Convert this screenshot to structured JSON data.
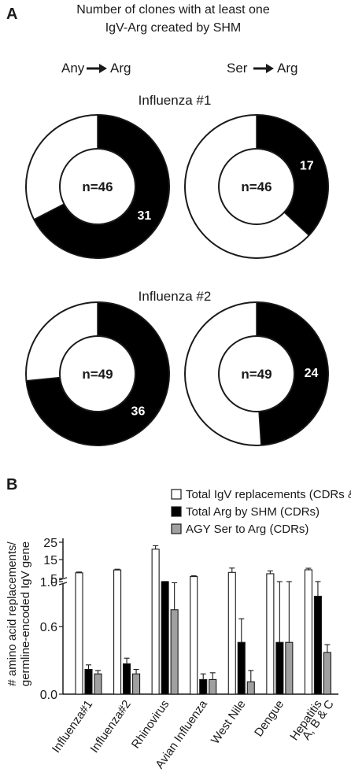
{
  "panel_a": {
    "letter": "A",
    "title_line1": "Number of clones with at least one",
    "title_line2": "IgV-Arg created by SHM",
    "col_left": "Any",
    "col_right": "Ser",
    "col_target": "Arg"
  },
  "panel_b": {
    "letter": "B"
  },
  "chart_data": [
    {
      "type": "pie",
      "style": "donut",
      "title": "Influenza #1",
      "column": "Any → Arg",
      "center_label": "n=46",
      "total": 46,
      "value": 31,
      "value_label": "31",
      "colors": {
        "value": "#000000",
        "rest": "#ffffff"
      }
    },
    {
      "type": "pie",
      "style": "donut",
      "title": "Influenza #1",
      "column": "Ser → Arg",
      "center_label": "n=46",
      "total": 46,
      "value": 17,
      "value_label": "17",
      "colors": {
        "value": "#000000",
        "rest": "#ffffff"
      }
    },
    {
      "type": "pie",
      "style": "donut",
      "title": "Influenza #2",
      "column": "Any → Arg",
      "center_label": "n=49",
      "total": 49,
      "value": 36,
      "value_label": "36",
      "colors": {
        "value": "#000000",
        "rest": "#ffffff"
      }
    },
    {
      "type": "pie",
      "style": "donut",
      "title": "Influenza #2",
      "column": "Ser → Arg",
      "center_label": "n=49",
      "total": 49,
      "value": 24,
      "value_label": "24",
      "colors": {
        "value": "#000000",
        "rest": "#ffffff"
      }
    },
    {
      "type": "bar",
      "ylabel_line1": "# amino acid replacements/",
      "ylabel_line2": "germline-encoded IgV gene",
      "y_axis": "broken",
      "y_lower": {
        "ticks": [
          "0.0",
          "0.6",
          "1.0"
        ],
        "range": [
          0,
          1.0
        ]
      },
      "y_upper": {
        "ticks": [
          "5",
          "15",
          "25"
        ],
        "range": [
          1.0,
          25
        ]
      },
      "categories": [
        "Influenza#1",
        "Influenza#2",
        "Rhinovirus",
        "Avian Influenza",
        "West Nile",
        "Dengue",
        "Hepatitis A, B & C"
      ],
      "category_lines": [
        [
          "Influenza#1"
        ],
        [
          "Influenza#2"
        ],
        [
          "Rhinovirus"
        ],
        [
          "Avian Influenza"
        ],
        [
          "West Nile"
        ],
        [
          "Dengue"
        ],
        [
          "Hepatitis",
          "A, B & C"
        ]
      ],
      "series": [
        {
          "name": "Total IgV replacements (CDRs & FRs)",
          "color": "#ffffff",
          "values": [
            8.0,
            9.5,
            21.0,
            6.0,
            8.2,
            7.5,
            9.6
          ],
          "errors": [
            0.4,
            0.4,
            2.0,
            0.4,
            2.3,
            1.5,
            0.8
          ]
        },
        {
          "name": "Total Arg by SHM (CDRs)",
          "color": "#000000",
          "values": [
            0.22,
            0.27,
            1.0,
            0.13,
            0.46,
            0.46,
            0.87
          ],
          "errors": [
            0.04,
            0.05,
            0.12,
            0.05,
            0.21,
            0.54,
            0.2
          ]
        },
        {
          "name": "AGY Ser to Arg (CDRs)",
          "color": "#a0a0a0",
          "values": [
            0.18,
            0.18,
            0.75,
            0.13,
            0.11,
            0.46,
            0.37
          ],
          "errors": [
            0.03,
            0.04,
            0.24,
            0.06,
            0.1,
            0.54,
            0.07
          ]
        }
      ]
    }
  ]
}
